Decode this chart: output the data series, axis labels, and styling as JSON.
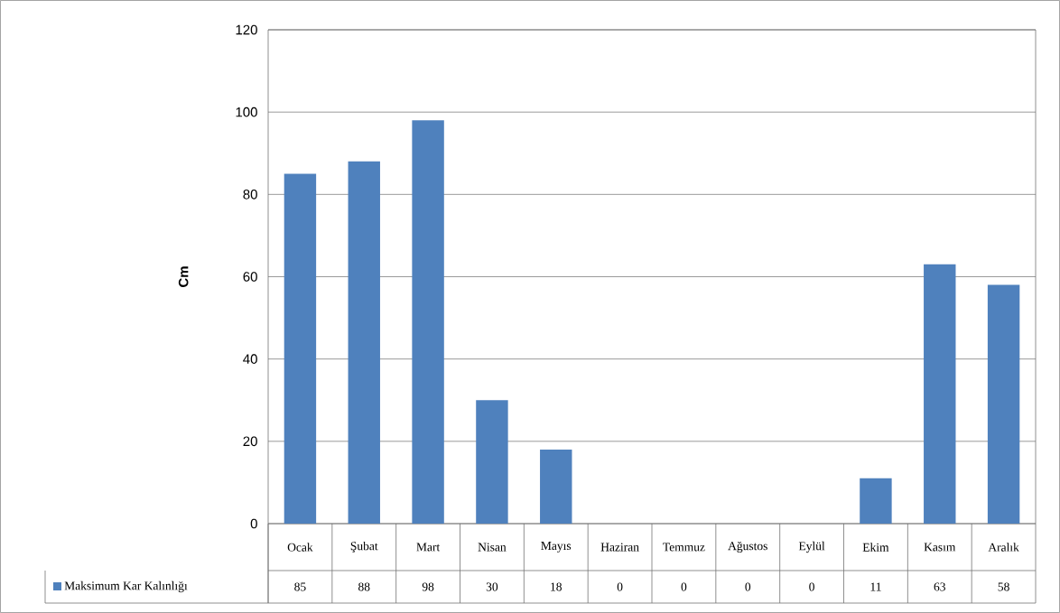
{
  "chart_data": {
    "type": "bar",
    "ylabel": "Cm",
    "categories": [
      "Ocak",
      "Şubat",
      "Mart",
      "Nisan",
      "Mayıs",
      "Haziran",
      "Temmuz",
      "Ağustos",
      "Eylül",
      "Ekim",
      "Kasım",
      "Aralık"
    ],
    "series": [
      {
        "name": "Maksimum Kar Kalınlığı",
        "color": "#4f81bd",
        "values": [
          85,
          88,
          98,
          30,
          18,
          0,
          0,
          0,
          0,
          11,
          63,
          58
        ]
      }
    ],
    "ylim": [
      0,
      120
    ],
    "yticks": [
      0,
      20,
      40,
      60,
      80,
      100,
      120
    ],
    "grid": "y",
    "legend": "bottom",
    "data_labels": true
  }
}
